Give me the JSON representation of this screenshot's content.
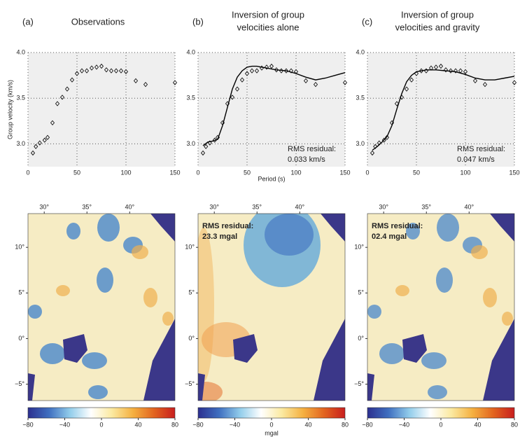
{
  "chart_data": [
    {
      "type": "scatter",
      "panel": "(a)",
      "title": [
        "Observations"
      ],
      "ylabel": "Group velocity (km/s)",
      "xlim": [
        0,
        150
      ],
      "xticks": [
        0,
        50,
        100,
        150
      ],
      "ylim": [
        2.75,
        4.0
      ],
      "yticks": [
        {
          "value": 3,
          "label": "3.0"
        },
        3.5,
        {
          "value": 4,
          "label": "4.0"
        }
      ],
      "grid": true,
      "series": [
        {
          "style": "markers",
          "color": "#000000",
          "x": [
            5,
            8,
            12,
            17,
            20,
            25,
            30,
            35,
            40,
            45,
            50,
            55,
            60,
            65,
            70,
            75,
            80,
            85,
            90,
            95,
            100,
            110,
            120,
            150
          ],
          "values": [
            2.9,
            2.97,
            3.01,
            3.04,
            3.07,
            3.23,
            3.44,
            3.51,
            3.6,
            3.7,
            3.77,
            3.8,
            3.8,
            3.83,
            3.84,
            3.85,
            3.81,
            3.8,
            3.8,
            3.8,
            3.79,
            3.69,
            3.65,
            3.67
          ]
        }
      ]
    },
    {
      "type": "line",
      "panel": "(b)",
      "title": [
        "Inversion of group",
        "velocities alone"
      ],
      "xlabel": "Period (s)",
      "annotation": [
        "RMS residual:",
        "0.033 km/s"
      ],
      "xlim": [
        0,
        150
      ],
      "xticks": [
        0,
        50,
        100,
        150
      ],
      "ylim": [
        2.75,
        4.0
      ],
      "yticks": [
        {
          "value": 3,
          "label": "3.0"
        },
        3.5,
        {
          "value": 4,
          "label": "4.0"
        }
      ],
      "grid": true,
      "series": [
        {
          "style": "markers",
          "color": "#000000",
          "x": [
            5,
            8,
            12,
            17,
            20,
            25,
            30,
            35,
            40,
            45,
            50,
            55,
            60,
            65,
            70,
            75,
            80,
            85,
            90,
            95,
            100,
            110,
            120,
            150
          ],
          "values": [
            2.9,
            2.97,
            3.01,
            3.04,
            3.07,
            3.23,
            3.44,
            3.51,
            3.6,
            3.7,
            3.77,
            3.8,
            3.8,
            3.83,
            3.84,
            3.85,
            3.81,
            3.8,
            3.8,
            3.8,
            3.79,
            3.69,
            3.65,
            3.67
          ]
        },
        {
          "style": "line",
          "color": "#000000",
          "x": [
            5,
            10,
            15,
            20,
            25,
            30,
            35,
            40,
            45,
            50,
            55,
            60,
            65,
            70,
            80,
            90,
            100,
            110,
            120,
            130,
            140,
            150
          ],
          "values": [
            2.98,
            3.02,
            3.03,
            3.05,
            3.2,
            3.4,
            3.6,
            3.73,
            3.8,
            3.84,
            3.85,
            3.85,
            3.84,
            3.83,
            3.81,
            3.8,
            3.77,
            3.73,
            3.7,
            3.72,
            3.75,
            3.78
          ]
        }
      ]
    },
    {
      "type": "line",
      "panel": "(c)",
      "title": [
        "Inversion of group",
        "velocities and gravity"
      ],
      "annotation": [
        "RMS residual:",
        "0.047 km/s"
      ],
      "xlim": [
        0,
        150
      ],
      "xticks": [
        0,
        50,
        100,
        150
      ],
      "ylim": [
        2.75,
        4.0
      ],
      "yticks": [
        {
          "value": 3,
          "label": "3.0"
        },
        3.5,
        {
          "value": 4,
          "label": "4.0"
        }
      ],
      "grid": true,
      "series": [
        {
          "style": "markers",
          "color": "#000000",
          "x": [
            5,
            8,
            12,
            17,
            20,
            25,
            30,
            35,
            40,
            45,
            50,
            55,
            60,
            65,
            70,
            75,
            80,
            85,
            90,
            95,
            100,
            110,
            120,
            150
          ],
          "values": [
            2.9,
            2.97,
            3.01,
            3.04,
            3.07,
            3.23,
            3.44,
            3.51,
            3.6,
            3.7,
            3.77,
            3.8,
            3.8,
            3.83,
            3.84,
            3.85,
            3.81,
            3.8,
            3.8,
            3.8,
            3.79,
            3.69,
            3.65,
            3.67
          ]
        },
        {
          "style": "line",
          "color": "#000000",
          "x": [
            5,
            10,
            15,
            20,
            25,
            30,
            35,
            40,
            45,
            50,
            60,
            70,
            80,
            90,
            100,
            110,
            120,
            130,
            140,
            150
          ],
          "values": [
            2.93,
            2.97,
            3.02,
            3.08,
            3.2,
            3.38,
            3.55,
            3.68,
            3.75,
            3.79,
            3.81,
            3.81,
            3.8,
            3.79,
            3.76,
            3.72,
            3.7,
            3.7,
            3.72,
            3.74
          ]
        }
      ]
    }
  ],
  "maps": [
    {
      "lonlim": [
        28.1,
        45.3
      ],
      "latlim": [
        -6.8,
        13.7
      ],
      "xticks": [
        {
          "value": 30,
          "label": "30°"
        },
        {
          "value": 35,
          "label": "35°"
        },
        {
          "value": 40,
          "label": "40°"
        }
      ],
      "yticks": [
        {
          "value": 10,
          "label": "10°"
        },
        {
          "value": 5,
          "label": "5°"
        },
        {
          "value": 0,
          "label": "0°"
        },
        {
          "value": -5,
          "label": "−5°"
        }
      ],
      "colorbar": {
        "lim": [
          -80,
          80
        ],
        "ticks": [
          {
            "value": -80,
            "label": "−80"
          },
          {
            "value": -40,
            "label": "−40"
          },
          0,
          40,
          80
        ],
        "colors": [
          "#2b2f8f",
          "#3f6fc0",
          "#92cdeb",
          "#ffffff",
          "#fbe9a0",
          "#f5b040",
          "#e2641f",
          "#c81e1e"
        ]
      }
    },
    {
      "lonlim": [
        28.1,
        45.3
      ],
      "latlim": [
        -6.8,
        13.7
      ],
      "annotation": [
        "RMS residual:",
        "23.3 mgal"
      ],
      "xticks": [
        {
          "value": 30,
          "label": "30°"
        },
        {
          "value": 35,
          "label": "35°"
        },
        {
          "value": 40,
          "label": "40°"
        }
      ],
      "yticks": [
        {
          "value": 10,
          "label": "10°"
        },
        {
          "value": 5,
          "label": "5°"
        },
        {
          "value": 0,
          "label": "0°"
        },
        {
          "value": -5,
          "label": "−5°"
        }
      ],
      "colorbar": {
        "lim": [
          -80,
          80
        ],
        "ticks": [
          {
            "value": -80,
            "label": "−80"
          },
          {
            "value": -40,
            "label": "−40"
          },
          0,
          40,
          80
        ],
        "label": "mgal",
        "colors": [
          "#2b2f8f",
          "#3f6fc0",
          "#92cdeb",
          "#ffffff",
          "#fbe9a0",
          "#f5b040",
          "#e2641f",
          "#c81e1e"
        ]
      }
    },
    {
      "lonlim": [
        28.1,
        45.3
      ],
      "latlim": [
        -6.8,
        13.7
      ],
      "annotation": [
        "RMS residual:",
        "02.4 mgal"
      ],
      "xticks": [
        {
          "value": 30,
          "label": "30°"
        },
        {
          "value": 35,
          "label": "35°"
        },
        {
          "value": 40,
          "label": "40°"
        }
      ],
      "yticks": [
        {
          "value": 10,
          "label": "10°"
        },
        {
          "value": 5,
          "label": "5°"
        },
        {
          "value": 0,
          "label": "0°"
        },
        {
          "value": -5,
          "label": "−5°"
        }
      ],
      "colorbar": {
        "lim": [
          -80,
          80
        ],
        "ticks": [
          {
            "value": -80,
            "label": "−80"
          },
          {
            "value": -40,
            "label": "−40"
          },
          0,
          40,
          80
        ],
        "colors": [
          "#2b2f8f",
          "#3f6fc0",
          "#92cdeb",
          "#ffffff",
          "#fbe9a0",
          "#f5b040",
          "#e2641f",
          "#c81e1e"
        ]
      }
    }
  ]
}
